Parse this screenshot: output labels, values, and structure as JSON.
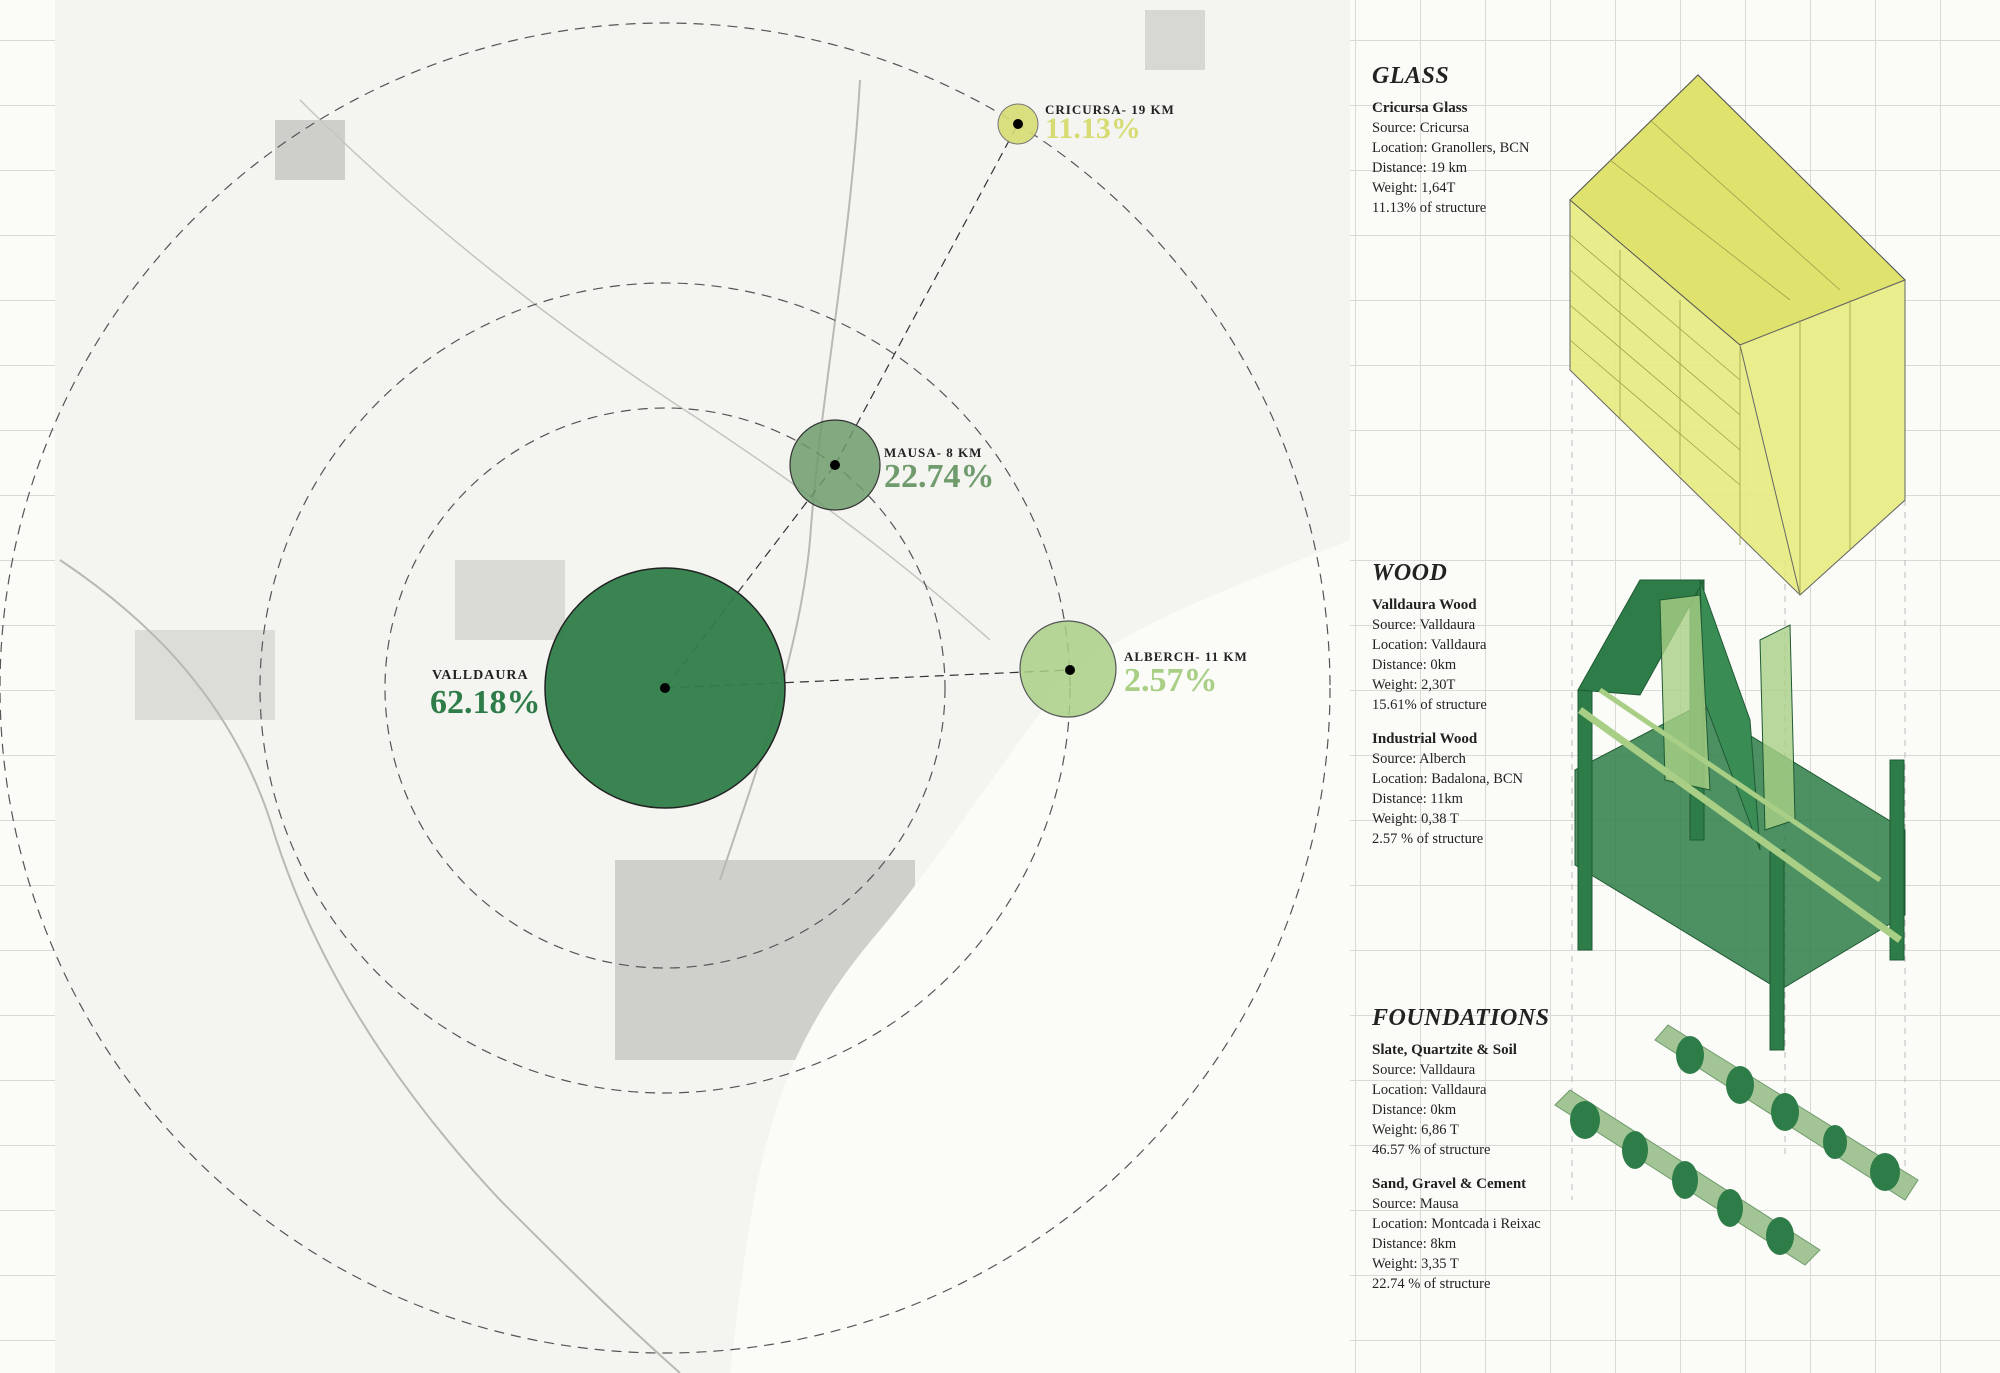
{
  "map": {
    "sources": [
      {
        "name": "VALLDAURA",
        "percent": "62.18%",
        "color": "#2e7d48"
      },
      {
        "name": "MAUSA- 8 KM",
        "percent": "22.74%",
        "color": "#6f9b6d"
      },
      {
        "name": "ALBERCH- 11 KM",
        "percent": "2.57%",
        "color": "#a9cf86"
      },
      {
        "name": "CRICURSA- 19 KM",
        "percent": "11.13%",
        "color": "#d6db72"
      }
    ]
  },
  "panels": {
    "glass": {
      "heading": "GLASS",
      "items": [
        {
          "title": "Cricursa Glass",
          "lines": [
            "Source: Cricursa",
            "Location: Granollers, BCN",
            "Distance: 19 km",
            "Weight: 1,64T",
            "11.13% of structure"
          ]
        }
      ]
    },
    "wood": {
      "heading": "WOOD",
      "items": [
        {
          "title": "Valldaura Wood",
          "lines": [
            "Source: Valldaura",
            "Location: Valldaura",
            "Distance: 0km",
            "Weight: 2,30T",
            "15.61% of structure"
          ]
        },
        {
          "title": "Industrial Wood",
          "lines": [
            "Source: Alberch",
            "Location: Badalona, BCN",
            "Distance: 11km",
            "Weight: 0,38 T",
            "2.57 % of structure"
          ]
        }
      ]
    },
    "foundations": {
      "heading": "FOUNDATIONS",
      "items": [
        {
          "title": "Slate, Quartzite & Soil",
          "lines": [
            "Source: Valldaura",
            "Location: Valldaura",
            "Distance: 0km",
            "Weight: 6,86 T",
            "46.57 % of structure"
          ]
        },
        {
          "title": "Sand, Gravel & Cement",
          "lines": [
            "Source: Mausa",
            "Location: Montcada i Reixac",
            "Distance: 8km",
            "Weight: 3,35 T",
            "22.74 % of structure"
          ]
        }
      ]
    }
  },
  "colors": {
    "dark_green": "#2e7d48",
    "mid_green": "#6f9b6d",
    "light_green": "#a9cf86",
    "glass_yellow": "#e6ea7e"
  }
}
